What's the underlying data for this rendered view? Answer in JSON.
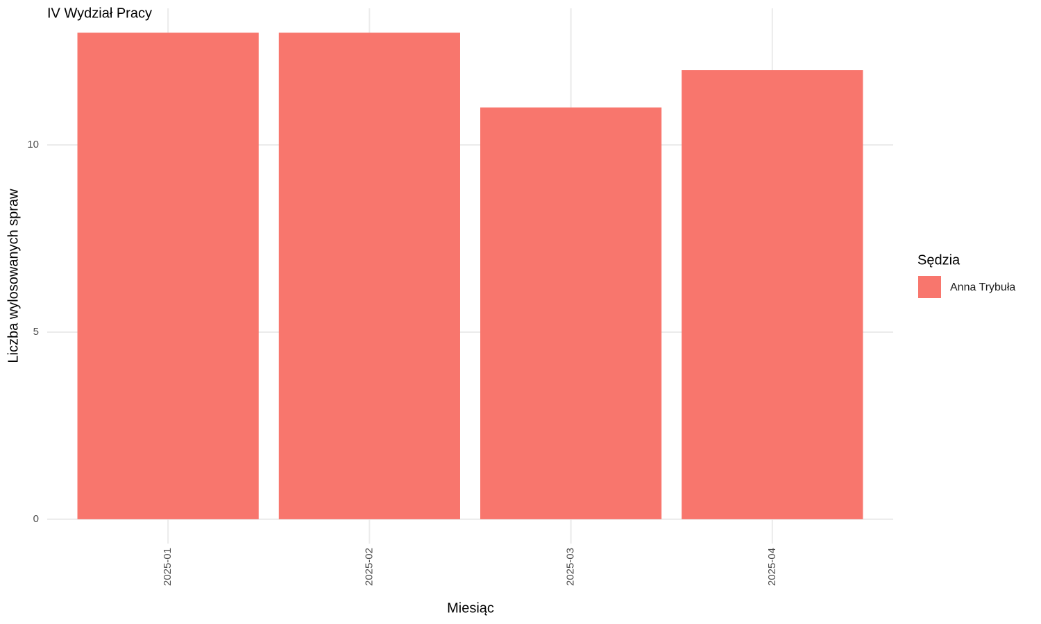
{
  "chart_data": {
    "type": "bar",
    "title": "IV Wydział Pracy",
    "x_label": "Miesiąc",
    "y_label": "Liczba wylosowanych spraw",
    "categories": [
      "2025-01",
      "2025-02",
      "2025-03",
      "2025-04"
    ],
    "series": [
      {
        "name": "Anna Trybuła",
        "color": "#F8766D",
        "values": [
          13,
          13,
          11,
          12
        ]
      }
    ],
    "legend_title": "Sędzia",
    "legend": "right",
    "ylim": [
      -0.65,
      13.65
    ],
    "yticks": [
      0,
      5,
      10
    ],
    "grid": true
  }
}
